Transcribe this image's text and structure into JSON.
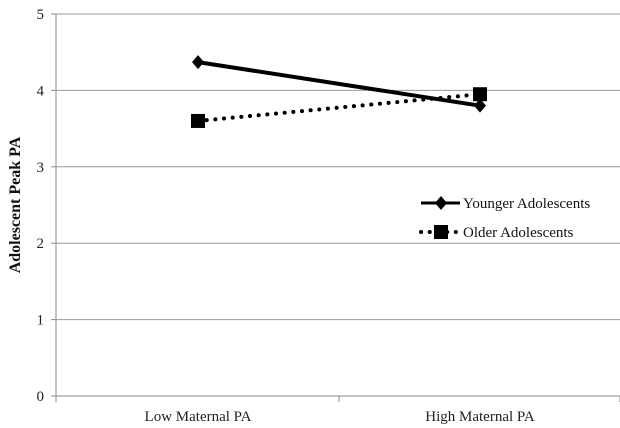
{
  "chart_data": {
    "type": "line",
    "title": "",
    "xlabel": "",
    "ylabel": "Adolescent Peak PA",
    "categories": [
      "Low Maternal PA",
      "High Maternal PA"
    ],
    "ylim": [
      0,
      5
    ],
    "yticks": [
      0,
      1,
      2,
      3,
      4,
      5
    ],
    "grid": true,
    "legend_position": "right",
    "series": [
      {
        "name": "Younger Adolescents",
        "values": [
          4.37,
          3.8
        ],
        "line_style": "solid",
        "marker": "diamond",
        "color": "#000000"
      },
      {
        "name": "Older Adolescents",
        "values": [
          3.6,
          3.95
        ],
        "line_style": "dotted",
        "marker": "square",
        "color": "#000000"
      }
    ]
  }
}
